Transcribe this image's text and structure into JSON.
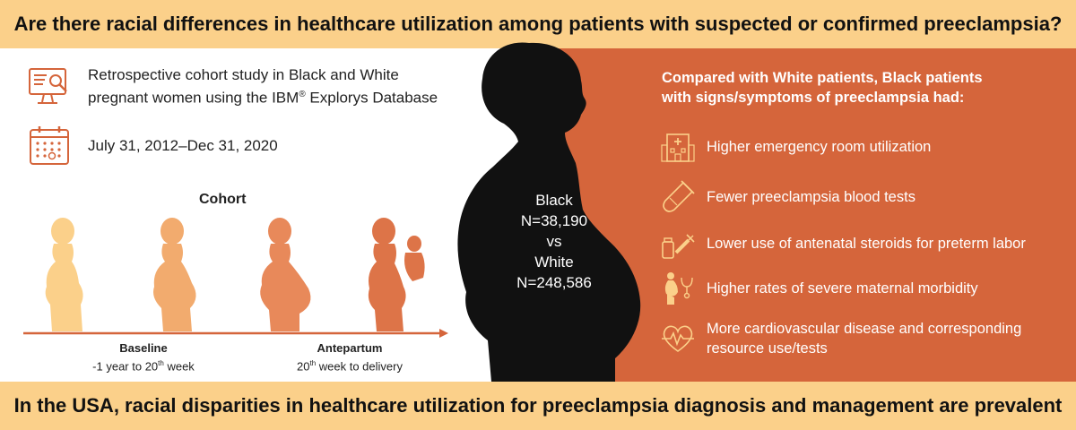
{
  "header": {
    "title": "Are there racial differences in healthcare utilization among patients with suspected or confirmed preeclampsia?"
  },
  "footer": {
    "conclusion": "In the USA, racial disparities in healthcare utilization for preeclampsia diagnosis and management are prevalent"
  },
  "study": {
    "design_line1": "Retrospective cohort study in Black and White",
    "design_line2_prefix": "pregnant women using the IBM",
    "design_reg": "®",
    "design_line2_suffix": " Explorys Database",
    "period": "July 31, 2012–Dec 31, 2020"
  },
  "cohort": {
    "title": "Cohort",
    "stages": [
      {
        "name": "Baseline",
        "range_prefix": "-1 year to 20",
        "range_sup": "th",
        "range_suffix": " week"
      },
      {
        "name": "Antepartum",
        "range_prefix": "20",
        "range_sup": "th",
        "range_suffix": " week to delivery"
      }
    ],
    "colors": [
      "#fbd08a",
      "#f2ab6e",
      "#e8895a",
      "#dd7448"
    ]
  },
  "comparison": {
    "group1": "Black",
    "n1": "N=38,190",
    "vs": "vs",
    "group2": "White",
    "n2": "N=248,586"
  },
  "findings": {
    "heading_line1": "Compared with White patients, Black patients",
    "heading_line2": "with signs/symptoms of preeclampsia had:",
    "items": [
      {
        "icon": "hospital-icon",
        "line1": "Higher emergency room utilization",
        "line2": ""
      },
      {
        "icon": "test-tube-icon",
        "line1": "Fewer preeclampsia blood tests",
        "line2": ""
      },
      {
        "icon": "syringe-icon",
        "line1": "Lower use of antenatal steroids for preterm labor",
        "line2": ""
      },
      {
        "icon": "pregnant-stethoscope-icon",
        "line1": "Higher rates of severe maternal morbidity",
        "line2": ""
      },
      {
        "icon": "heart-rate-icon",
        "line1": "More cardiovascular disease and corresponding",
        "line2": "resource use/tests"
      }
    ]
  },
  "colors": {
    "banner": "#fbd08a",
    "panel": "#d5653b",
    "icon_stroke": "#d5653b",
    "silhouette": "#111111"
  }
}
